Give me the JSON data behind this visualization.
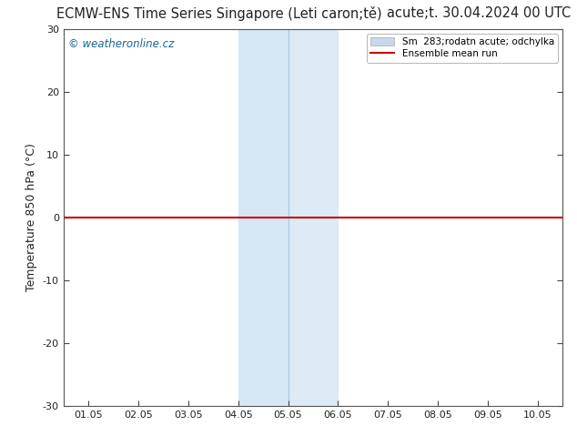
{
  "title_left": "ECMW-ENS Time Series Singapore (Leti caron;tě)",
  "title_right": "acute;t. 30.04.2024 00 UTC",
  "ylabel": "Temperature 850 hPa (°C)",
  "watermark": "© weatheronline.cz",
  "legend_label1": "Sm  283;rodatn acute; odchylka",
  "legend_label2": "Ensemble mean run",
  "legend_color1": "#c8d8e8",
  "legend_color2": "#cc0000",
  "xlim_left": 0.5,
  "xlim_right": 10.5,
  "ylim_bottom": -30,
  "ylim_top": 30,
  "xtick_positions": [
    1,
    2,
    3,
    4,
    5,
    6,
    7,
    8,
    9,
    10
  ],
  "xtick_labels": [
    "01.05",
    "02.05",
    "03.05",
    "04.05",
    "05.05",
    "06.05",
    "07.05",
    "08.05",
    "09.05",
    "10.05"
  ],
  "ytick_positions": [
    -30,
    -20,
    -10,
    0,
    10,
    20,
    30
  ],
  "ytick_labels": [
    "-30",
    "-20",
    "-10",
    "0",
    "10",
    "20",
    "30"
  ],
  "shade_x_start": 4.0,
  "shade_x_end": 6.0,
  "shade_divider": 5.0,
  "shade_color": "#d6e8f5",
  "line_y": 0.0,
  "line_color": "#cc0000",
  "line_width": 1.5,
  "background_color": "#ffffff",
  "plot_bg_color": "#ffffff",
  "title_fontsize": 10.5,
  "axis_label_fontsize": 9,
  "tick_fontsize": 8,
  "watermark_fontsize": 8.5,
  "legend_fontsize": 7.5
}
